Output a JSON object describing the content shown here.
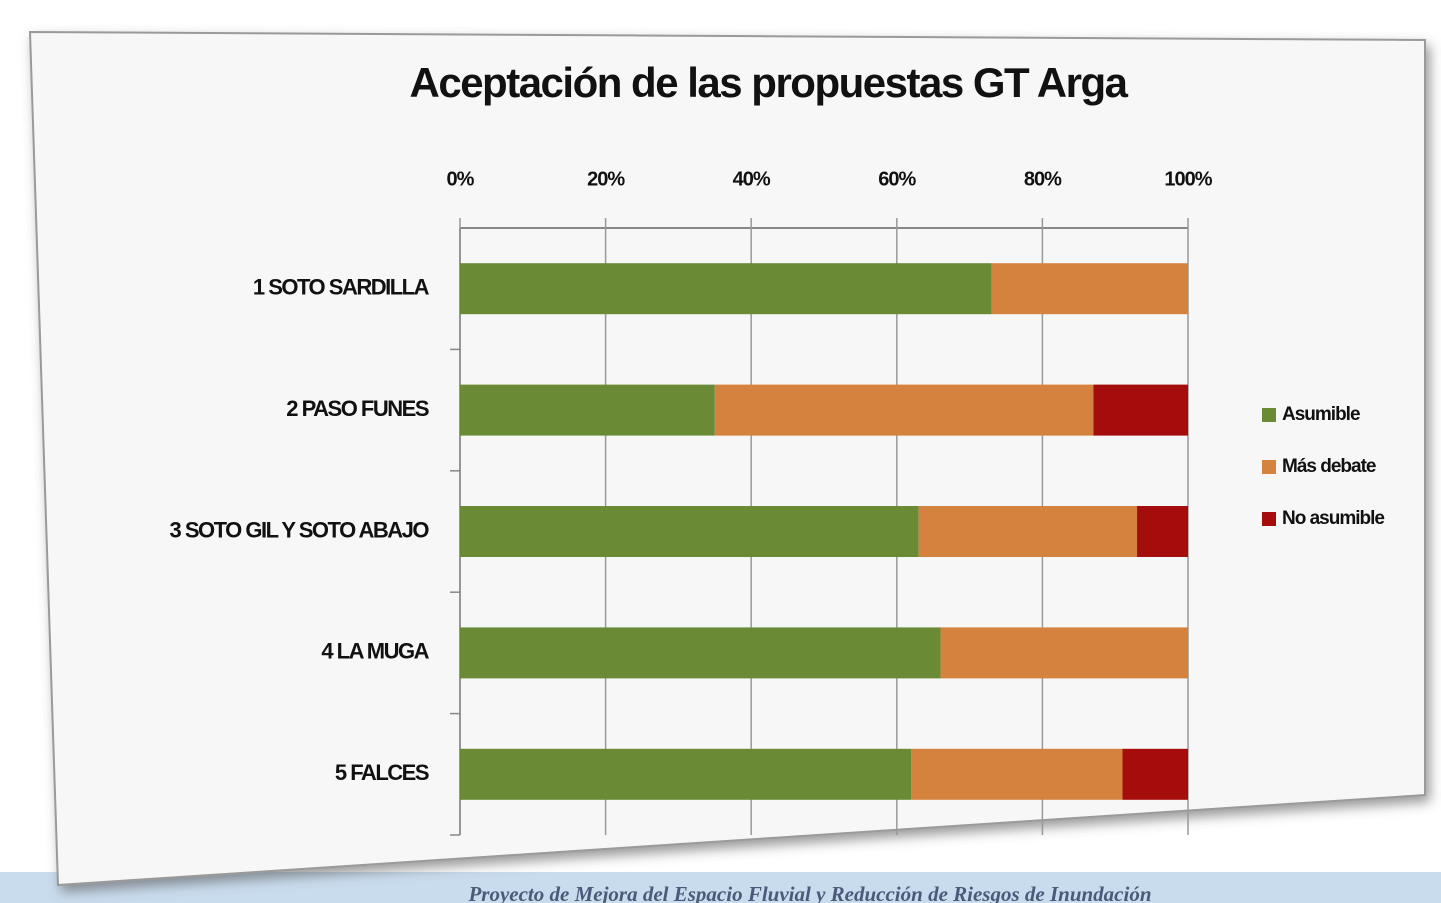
{
  "chart_data": {
    "type": "bar",
    "orientation": "horizontal",
    "stacked": true,
    "title": "Aceptación de las propuestas GT Arga",
    "categories": [
      "1 SOTO SARDILLA",
      "2 PASO FUNES",
      "3 SOTO GIL Y SOTO ABAJO",
      "4 LA MUGA",
      "5 FALCES"
    ],
    "series": [
      {
        "name": "Asumible",
        "color": "#6a8a35",
        "values": [
          73,
          35,
          63,
          66,
          62
        ]
      },
      {
        "name": "Más debate",
        "color": "#d5823f",
        "values": [
          27,
          52,
          30,
          34,
          29
        ]
      },
      {
        "name": "No asumible",
        "color": "#a50d0d",
        "values": [
          0,
          13,
          7,
          0,
          9
        ]
      }
    ],
    "xlim": [
      0,
      100
    ],
    "xticks": [
      {
        "value": 0,
        "label": "0%"
      },
      {
        "value": 20,
        "label": "20%"
      },
      {
        "value": 40,
        "label": "40%"
      },
      {
        "value": 60,
        "label": "60%"
      },
      {
        "value": 80,
        "label": "80%"
      },
      {
        "value": 100,
        "label": "100%"
      }
    ],
    "grid": true,
    "legend": "right"
  },
  "footer": "Proyecto de Mejora del Espacio Fluvial y Reducción de Riesgos de Inundación"
}
